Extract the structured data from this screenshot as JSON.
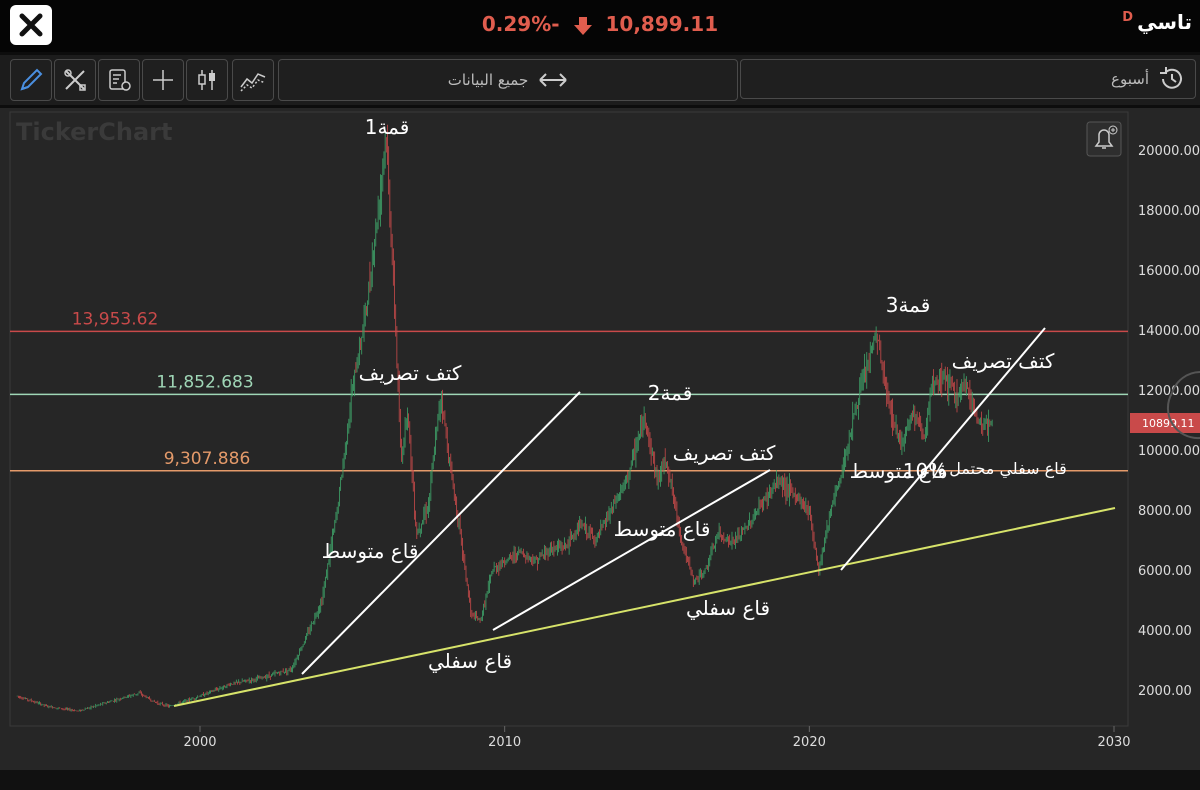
{
  "header": {
    "close_icon": "close-icon",
    "change_percent": "0.29%-",
    "price": "10,899.11",
    "symbol": "تاسي",
    "symbol_badge": "D",
    "change_color": "#e05d4e"
  },
  "toolbar": {
    "tools": [
      "pencil-icon",
      "tools-icon",
      "checklist-settings-icon",
      "crosshair-icon",
      "candlestick-icon",
      "indicator-icon"
    ],
    "range_label": "جميع البيانات",
    "period_label": "أسبوع"
  },
  "chart": {
    "watermark": "TickerChart",
    "y_ticks": [
      "20000.00",
      "18000.00",
      "16000.00",
      "14000.00",
      "12000.00",
      "10000.00",
      "8000.00",
      "6000.00",
      "4000.00",
      "2000.00"
    ],
    "x_ticks": [
      "2000",
      "2010",
      "2020",
      "2030"
    ],
    "last_price_tag": "10899.11",
    "levels": [
      {
        "label": "13,953.62",
        "value": 13953.62,
        "color": "#c94a4a"
      },
      {
        "label": "11,852.683",
        "value": 11852.683,
        "color": "#9fd6b6"
      },
      {
        "label": "9,307.886",
        "value": 9307.886,
        "color": "#e49a6a"
      }
    ],
    "annotations": {
      "peak1": "قمة1",
      "peak2": "قمة2",
      "peak3": "قمة3",
      "shoulder1": "كتف تصريف",
      "shoulder2": "كتف تصريف",
      "shoulder3": "كتف تصريف",
      "mid_bottom1": "قاع متوسط",
      "mid_bottom2": "قاع متوسط",
      "mid_bottom3": "قاع متوسط",
      "low_bottom1": "قاع سفلي",
      "low_bottom2": "قاع سفلي",
      "possible_low": "قاع سفلي محتمل",
      "overlay_text": "10%"
    },
    "trendline_color": "#d7e36a",
    "candle_up": "#3fa56a",
    "candle_down": "#c94a4a"
  }
}
